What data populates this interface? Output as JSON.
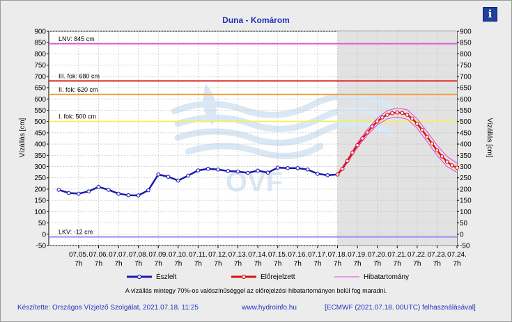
{
  "chart_data": {
    "type": "line",
    "title": "Duna - Komárom",
    "ylabel": "Vízállás [cm]",
    "ylabel_right": "Vízállás [cm]",
    "ylim": [
      -50,
      900
    ],
    "yticks": [
      -50,
      0,
      50,
      100,
      150,
      200,
      250,
      300,
      350,
      400,
      450,
      500,
      550,
      600,
      650,
      700,
      750,
      800,
      850,
      900
    ],
    "x_ticks": [
      {
        "date": "07.05.",
        "hour": "7h"
      },
      {
        "date": "07.06.",
        "hour": "7h"
      },
      {
        "date": "07.07.",
        "hour": "7h"
      },
      {
        "date": "07.08.",
        "hour": "7h"
      },
      {
        "date": "07.09.",
        "hour": "7h"
      },
      {
        "date": "07.10.",
        "hour": "7h"
      },
      {
        "date": "07.11.",
        "hour": "7h"
      },
      {
        "date": "07.12.",
        "hour": "7h"
      },
      {
        "date": "07.13.",
        "hour": "7h"
      },
      {
        "date": "07.14.",
        "hour": "7h"
      },
      {
        "date": "07.15.",
        "hour": "7h"
      },
      {
        "date": "07.16.",
        "hour": "7h"
      },
      {
        "date": "07.17.",
        "hour": "7h"
      },
      {
        "date": "07.18.",
        "hour": "7h"
      },
      {
        "date": "07.19.",
        "hour": "7h"
      },
      {
        "date": "07.20.",
        "hour": "7h"
      },
      {
        "date": "07.21.",
        "hour": "7h"
      },
      {
        "date": "07.22.",
        "hour": "7h"
      },
      {
        "date": "07.23.",
        "hour": "7h"
      },
      {
        "date": "07.24.",
        "hour": "7h"
      }
    ],
    "reference_lines": [
      {
        "label": "LNV: 845 cm",
        "value": 845,
        "color": "#e060e0"
      },
      {
        "label": "III. fok: 680 cm",
        "value": 680,
        "color": "#dd2222"
      },
      {
        "label": "II. fok: 620 cm",
        "value": 620,
        "color": "#f0a030"
      },
      {
        "label": "I. fok: 500 cm",
        "value": 500,
        "color": "#f0f060"
      },
      {
        "label": "LKV: -12 cm",
        "value": -12,
        "color": "#9090f0"
      }
    ],
    "series": [
      {
        "name": "Észlelt",
        "color": "#1a1ab0",
        "x": [
          4.0,
          4.5,
          5.0,
          5.5,
          6.0,
          6.5,
          7.0,
          7.5,
          8.0,
          8.5,
          9.0,
          9.5,
          10.0,
          10.5,
          11.0,
          11.5,
          12.0,
          12.5,
          13.0,
          13.5,
          14.0,
          14.5,
          15.0,
          15.5,
          16.0,
          16.5,
          17.0,
          17.5,
          18.0
        ],
        "values": [
          197,
          183,
          180,
          190,
          210,
          197,
          180,
          173,
          172,
          195,
          265,
          255,
          238,
          260,
          283,
          290,
          287,
          280,
          278,
          272,
          282,
          273,
          295,
          293,
          293,
          287,
          268,
          262,
          265
        ]
      },
      {
        "name": "Előrejelzett",
        "color": "#dd1111",
        "x": [
          18.0,
          18.25,
          18.5,
          18.75,
          19.0,
          19.25,
          19.5,
          19.75,
          20.0,
          20.25,
          20.5,
          20.75,
          21.0,
          21.25,
          21.5,
          21.75,
          22.0,
          22.25,
          22.5,
          22.75,
          23.0,
          23.25,
          23.5,
          23.75,
          24.0
        ],
        "values": [
          265,
          290,
          325,
          362,
          395,
          425,
          452,
          478,
          500,
          518,
          530,
          537,
          540,
          538,
          530,
          513,
          490,
          463,
          432,
          402,
          372,
          345,
          322,
          305,
          295
        ]
      }
    ],
    "uncertainty": {
      "name": "Hibatartomány",
      "color": "#e040e0",
      "x": [
        18.0,
        18.5,
        19.0,
        19.5,
        20.0,
        20.5,
        21.0,
        21.5,
        22.0,
        22.5,
        23.0,
        23.5,
        24.0
      ],
      "upper": [
        268,
        332,
        405,
        465,
        515,
        548,
        560,
        552,
        512,
        455,
        395,
        345,
        315
      ],
      "lower": [
        262,
        318,
        385,
        440,
        485,
        512,
        520,
        510,
        470,
        410,
        350,
        300,
        275
      ]
    },
    "forecast_start_x": 18.0,
    "legend_position": "bottom"
  },
  "legend": {
    "observed": "Észlelt",
    "forecast": "Előrejelzett",
    "range": "Hibatartomány"
  },
  "note": "A vízállás mintegy 70%-os valószínűséggel az előrejelzési hibatartományon belül fog maradni.",
  "footer": {
    "credit": "Készítette: Országos Vízjelző Szolgálat, 2021.07.18. 11:25",
    "site": "www.hydroinfo.hu",
    "ecmwf": "[ECMWF (2021.07.18. 00UTC) felhasználásával]"
  },
  "info_button": {
    "label": "i",
    "icon": "info-icon"
  },
  "watermark": "OVF"
}
